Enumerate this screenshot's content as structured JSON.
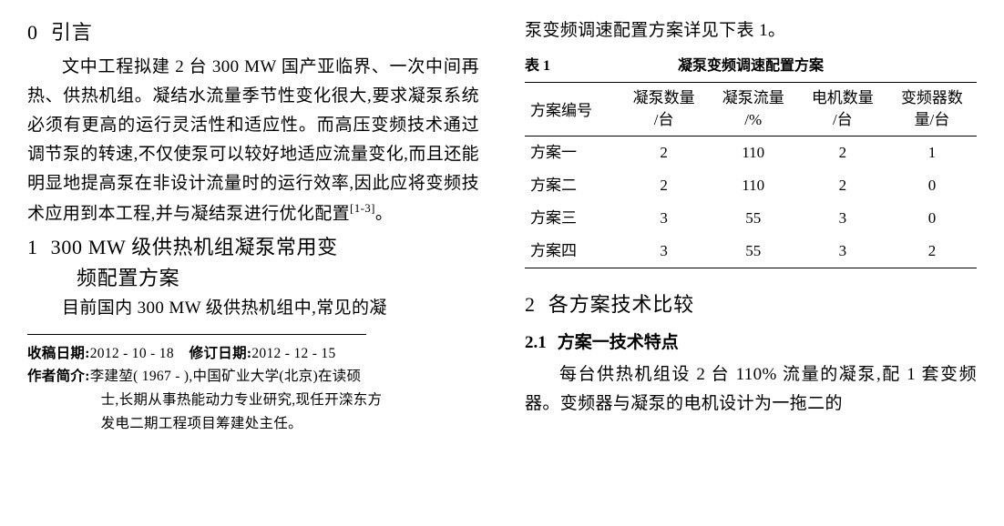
{
  "left": {
    "sec0": {
      "num": "0",
      "title": "引言",
      "p1": "文中工程拟建 2 台 300 MW 国产亚临界、一次中间再热、供热机组。凝结水流量季节性变化很大,要求凝泵系统必须有更高的运行灵活性和适应性。而高压变频技术通过调节泵的转速,不仅使泵可以较好地适应流量变化,而且还能明显地提高泵在非设计流量时的运行效率,因此应将变频技术应用到本工程,并与凝结泵进行优化配置",
      "p1_cite": "[1-3]",
      "p1_end": "。"
    },
    "sec1": {
      "num": "1",
      "title_l1": "300 MW 级供热机组凝泵常用变",
      "title_l2": "频配置方案",
      "p1": "目前国内 300 MW 级供热机组中,常见的凝"
    },
    "footnotes": {
      "recv_label": "收稿日期:",
      "recv_date": "2012 - 10 - 18",
      "rev_label": "修订日期:",
      "rev_date": "2012 - 12 - 15",
      "author_label": "作者简介:",
      "author_text_l1": "李建堃( 1967 - ),中国矿业大学(北京)在读硕",
      "author_text_l2": "士,长期从事热能动力专业研究,现任开滦东方",
      "author_text_l3": "发电二期工程项目筹建处主任。"
    }
  },
  "right": {
    "lead": "泵变频调速配置方案详见下表 1。",
    "table": {
      "cap_left": "表 1",
      "cap_center": "凝泵变频调速配置方案",
      "head": {
        "c0": "方案编号",
        "c1a": "凝泵数量",
        "c1b": "/台",
        "c2a": "凝泵流量",
        "c2b": "/%",
        "c3a": "电机数量",
        "c3b": "/台",
        "c4a": "变频器数",
        "c4b": "量/台"
      },
      "rows": [
        {
          "name": "方案一",
          "a": "2",
          "b": "110",
          "c": "2",
          "d": "1"
        },
        {
          "name": "方案二",
          "a": "2",
          "b": "110",
          "c": "2",
          "d": "0"
        },
        {
          "name": "方案三",
          "a": "3",
          "b": "55",
          "c": "3",
          "d": "0"
        },
        {
          "name": "方案四",
          "a": "3",
          "b": "55",
          "c": "3",
          "d": "2"
        }
      ]
    },
    "sec2": {
      "num": "2",
      "title": "各方案技术比较"
    },
    "sec21": {
      "num": "2.1",
      "title": "方案一技术特点",
      "p1": "每台供热机组设 2 台 110% 流量的凝泵,配 1 套变频器。变频器与凝泵的电机设计为一拖二的"
    }
  }
}
